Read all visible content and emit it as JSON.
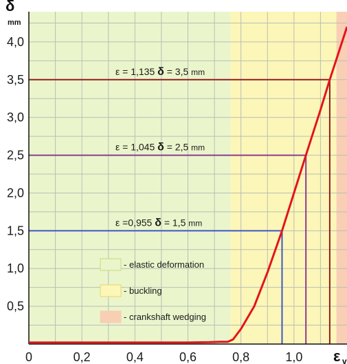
{
  "chart_data": {
    "type": "line",
    "y_symbol": "δ",
    "y_unit": "mm",
    "x_symbol": "ε",
    "x_symbol_sub": "v",
    "xlim": [
      0,
      1.2
    ],
    "ylim": [
      0,
      4.4
    ],
    "x_ticks": [
      {
        "value": 0,
        "label": "0"
      },
      {
        "value": 0.2,
        "label": "0,2"
      },
      {
        "value": 0.4,
        "label": "0,4"
      },
      {
        "value": 0.6,
        "label": "0,6"
      },
      {
        "value": 0.8,
        "label": "0,8"
      },
      {
        "value": 1.0,
        "label": "1,0"
      }
    ],
    "y_ticks": [
      {
        "value": 0.5,
        "label": "0,5"
      },
      {
        "value": 1.0,
        "label": "1,0"
      },
      {
        "value": 1.5,
        "label": "1,5"
      },
      {
        "value": 2.0,
        "label": "2,0"
      },
      {
        "value": 2.5,
        "label": "2,5"
      },
      {
        "value": 3.0,
        "label": "3,0"
      },
      {
        "value": 3.5,
        "label": "3,5"
      },
      {
        "value": 4.0,
        "label": "4,0"
      }
    ],
    "grid": true,
    "regions": [
      {
        "name": "elastic deformation",
        "x_start": 0,
        "x_end": 0.76,
        "color": "#eaf5cc"
      },
      {
        "name": "buckling",
        "x_start": 0.76,
        "x_end": 1.16,
        "color": "#fcf6b8"
      },
      {
        "name": "crankshaft wedging",
        "x_start": 1.16,
        "x_end": 1.2,
        "color": "#f8cfb4"
      }
    ],
    "series": [
      {
        "color": "#e3141a",
        "x": [
          0,
          0.2,
          0.4,
          0.6,
          0.68,
          0.72,
          0.75,
          0.77,
          0.8,
          0.85,
          0.9,
          0.955,
          1.0,
          1.045,
          1.1,
          1.135,
          1.2
        ],
        "y": [
          0.02,
          0.02,
          0.02,
          0.02,
          0.025,
          0.03,
          0.03,
          0.06,
          0.2,
          0.5,
          0.95,
          1.5,
          2.0,
          2.5,
          3.1,
          3.5,
          4.2
        ]
      }
    ],
    "reference_lines": [
      {
        "x": 0.955,
        "y": 1.5,
        "color": "#3e56c6",
        "eps_label": "ε =0,955",
        "delta_label": "δ",
        "value_label": " = 1,5 ",
        "unit": "mm"
      },
      {
        "x": 1.045,
        "y": 2.5,
        "color": "#8a3c8f",
        "eps_label": "ε = 1,045",
        "delta_label": "δ",
        "value_label": " = 2,5 ",
        "unit": "mm"
      },
      {
        "x": 1.135,
        "y": 3.5,
        "color": "#8e1d22",
        "eps_label": "ε = 1,135",
        "delta_label": "δ",
        "value_label": " = 3,5 ",
        "unit": "mm"
      }
    ],
    "legend": {
      "placement": "lower-center",
      "entries": [
        {
          "label": "- elastic deformation",
          "color": "#eaf5cc",
          "border": "#bfe07a"
        },
        {
          "label": "- buckling",
          "color": "#fcf6b8",
          "border": "#e6d86a"
        },
        {
          "label": "- crankshaft wedging",
          "color": "#f8cfb4",
          "border": "#f8cfb4"
        }
      ]
    }
  }
}
